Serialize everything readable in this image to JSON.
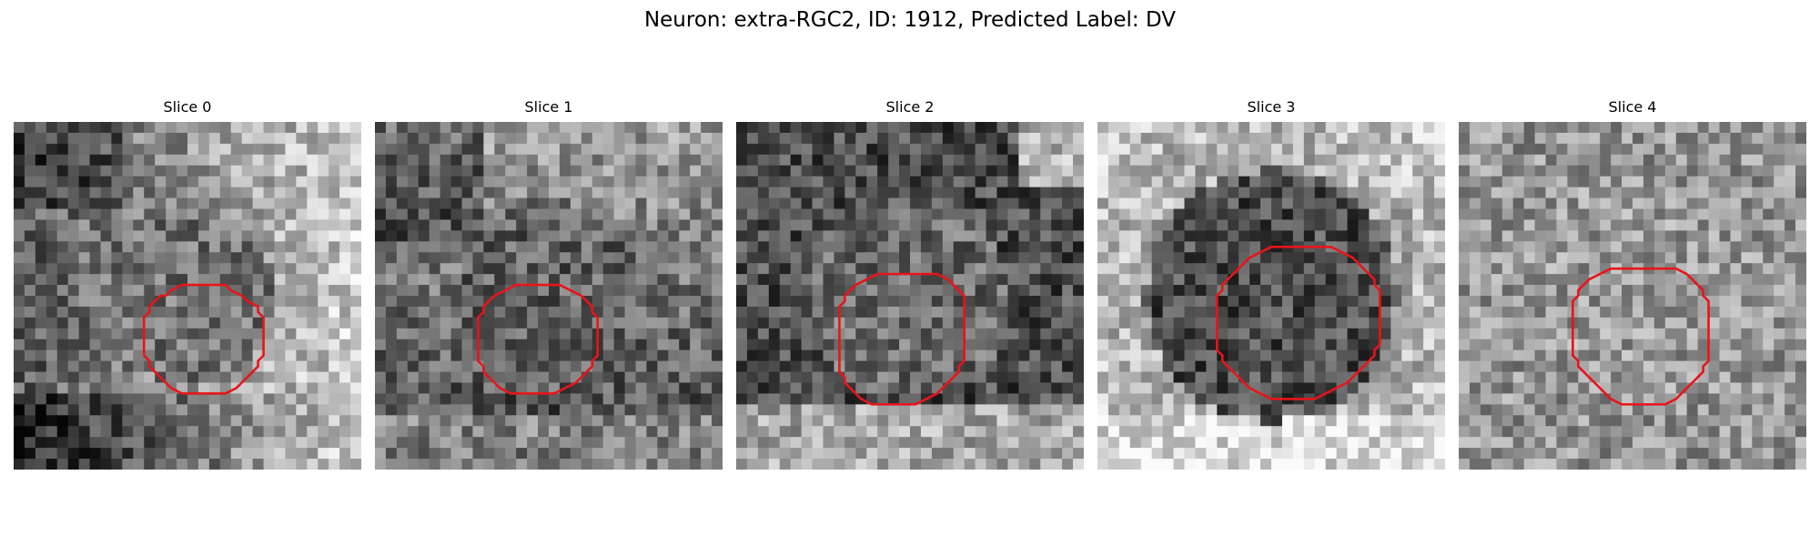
{
  "figure": {
    "title": "Neuron: extra-RGC2, ID: 1912, Predicted Label: DV"
  },
  "outline_color": "#e8141a",
  "panels": [
    {
      "title": "Slice 0",
      "background_tone": "dark-left-bright-right",
      "outline": [
        [
          40,
          31
        ],
        [
          42,
          32
        ],
        [
          43,
          33
        ],
        [
          45,
          34
        ],
        [
          45,
          35
        ],
        [
          46,
          36
        ],
        [
          46,
          37
        ],
        [
          46,
          38
        ],
        [
          46,
          39
        ],
        [
          46,
          40
        ],
        [
          46,
          41
        ],
        [
          46,
          42
        ],
        [
          46,
          43
        ],
        [
          45,
          44
        ],
        [
          45,
          45
        ],
        [
          44,
          46
        ],
        [
          43,
          47
        ],
        [
          42,
          48
        ],
        [
          41,
          49
        ],
        [
          39,
          50
        ],
        [
          37,
          50
        ],
        [
          35,
          50
        ],
        [
          33,
          50
        ],
        [
          31,
          50
        ],
        [
          29,
          49
        ],
        [
          28,
          48
        ],
        [
          27,
          47
        ],
        [
          26,
          46
        ],
        [
          25,
          45
        ],
        [
          25,
          44
        ],
        [
          24,
          43
        ],
        [
          24,
          42
        ],
        [
          24,
          41
        ],
        [
          24,
          40
        ],
        [
          24,
          39
        ],
        [
          24,
          38
        ],
        [
          24,
          37
        ],
        [
          24,
          36
        ],
        [
          25,
          35
        ],
        [
          25,
          34
        ],
        [
          26,
          33
        ],
        [
          27,
          32
        ],
        [
          28,
          32
        ],
        [
          29,
          31
        ],
        [
          31,
          30
        ],
        [
          33,
          30
        ],
        [
          35,
          30
        ],
        [
          37,
          30
        ],
        [
          39,
          30
        ],
        [
          40,
          31
        ]
      ]
    },
    {
      "title": "Slice 1",
      "background_tone": "dark-lower-bright-upper",
      "outline": [
        [
          34,
          30
        ],
        [
          36,
          31
        ],
        [
          38,
          32
        ],
        [
          39,
          33
        ],
        [
          40,
          34
        ],
        [
          40,
          35
        ],
        [
          41,
          36
        ],
        [
          41,
          37
        ],
        [
          41,
          38
        ],
        [
          41,
          39
        ],
        [
          41,
          40
        ],
        [
          41,
          41
        ],
        [
          41,
          42
        ],
        [
          41,
          43
        ],
        [
          40,
          44
        ],
        [
          40,
          45
        ],
        [
          39,
          46
        ],
        [
          38,
          47
        ],
        [
          37,
          48
        ],
        [
          35,
          49
        ],
        [
          33,
          50
        ],
        [
          31,
          50
        ],
        [
          29,
          50
        ],
        [
          27,
          50
        ],
        [
          25,
          50
        ],
        [
          23,
          49
        ],
        [
          22,
          48
        ],
        [
          21,
          47
        ],
        [
          20,
          46
        ],
        [
          20,
          45
        ],
        [
          19,
          44
        ],
        [
          19,
          43
        ],
        [
          19,
          42
        ],
        [
          19,
          41
        ],
        [
          19,
          40
        ],
        [
          19,
          39
        ],
        [
          19,
          38
        ],
        [
          19,
          37
        ],
        [
          19,
          36
        ],
        [
          20,
          35
        ],
        [
          20,
          34
        ],
        [
          21,
          33
        ],
        [
          22,
          32
        ],
        [
          24,
          31
        ],
        [
          26,
          30
        ],
        [
          28,
          30
        ],
        [
          30,
          30
        ],
        [
          32,
          30
        ],
        [
          34,
          30
        ]
      ]
    },
    {
      "title": "Slice 2",
      "background_tone": "dark-center-bright-bottom",
      "outline": [
        [
          37,
          28
        ],
        [
          39,
          29
        ],
        [
          40,
          30
        ],
        [
          41,
          31
        ],
        [
          42,
          32
        ],
        [
          42,
          33
        ],
        [
          42,
          34
        ],
        [
          42,
          35
        ],
        [
          42,
          36
        ],
        [
          42,
          37
        ],
        [
          42,
          38
        ],
        [
          42,
          39
        ],
        [
          42,
          40
        ],
        [
          42,
          41
        ],
        [
          42,
          42
        ],
        [
          42,
          43
        ],
        [
          42,
          44
        ],
        [
          41,
          45
        ],
        [
          41,
          46
        ],
        [
          40,
          47
        ],
        [
          39,
          48
        ],
        [
          38,
          49
        ],
        [
          37,
          50
        ],
        [
          35,
          51
        ],
        [
          33,
          52
        ],
        [
          31,
          52
        ],
        [
          29,
          52
        ],
        [
          27,
          52
        ],
        [
          25,
          52
        ],
        [
          23,
          51
        ],
        [
          22,
          50
        ],
        [
          21,
          49
        ],
        [
          20,
          48
        ],
        [
          20,
          47
        ],
        [
          19,
          46
        ],
        [
          19,
          45
        ],
        [
          19,
          44
        ],
        [
          19,
          43
        ],
        [
          19,
          42
        ],
        [
          19,
          41
        ],
        [
          19,
          40
        ],
        [
          19,
          39
        ],
        [
          19,
          38
        ],
        [
          19,
          37
        ],
        [
          19,
          36
        ],
        [
          19,
          35
        ],
        [
          19,
          34
        ],
        [
          20,
          33
        ],
        [
          20,
          32
        ],
        [
          21,
          31
        ],
        [
          22,
          30
        ],
        [
          24,
          29
        ],
        [
          26,
          28
        ],
        [
          28,
          28
        ],
        [
          30,
          28
        ],
        [
          32,
          28
        ],
        [
          34,
          28
        ],
        [
          36,
          28
        ],
        [
          37,
          28
        ]
      ]
    },
    {
      "title": "Slice 3",
      "background_tone": "dark-center-bright-edges",
      "outline": [
        [
          43,
          23
        ],
        [
          45,
          24
        ],
        [
          47,
          25
        ],
        [
          48,
          26
        ],
        [
          49,
          27
        ],
        [
          50,
          28
        ],
        [
          51,
          29
        ],
        [
          51,
          30
        ],
        [
          52,
          31
        ],
        [
          52,
          32
        ],
        [
          52,
          33
        ],
        [
          52,
          34
        ],
        [
          52,
          35
        ],
        [
          52,
          36
        ],
        [
          52,
          37
        ],
        [
          52,
          38
        ],
        [
          52,
          39
        ],
        [
          52,
          40
        ],
        [
          52,
          41
        ],
        [
          51,
          42
        ],
        [
          51,
          43
        ],
        [
          50,
          44
        ],
        [
          49,
          45
        ],
        [
          48,
          46
        ],
        [
          47,
          47
        ],
        [
          46,
          48
        ],
        [
          44,
          49
        ],
        [
          42,
          50
        ],
        [
          40,
          51
        ],
        [
          38,
          51
        ],
        [
          36,
          51
        ],
        [
          34,
          51
        ],
        [
          32,
          51
        ],
        [
          30,
          50
        ],
        [
          28,
          49
        ],
        [
          27,
          48
        ],
        [
          26,
          47
        ],
        [
          25,
          46
        ],
        [
          24,
          45
        ],
        [
          23,
          44
        ],
        [
          23,
          43
        ],
        [
          22,
          42
        ],
        [
          22,
          41
        ],
        [
          22,
          40
        ],
        [
          22,
          39
        ],
        [
          22,
          38
        ],
        [
          22,
          37
        ],
        [
          22,
          36
        ],
        [
          22,
          35
        ],
        [
          22,
          34
        ],
        [
          22,
          33
        ],
        [
          22,
          32
        ],
        [
          23,
          31
        ],
        [
          23,
          30
        ],
        [
          24,
          29
        ],
        [
          25,
          28
        ],
        [
          26,
          27
        ],
        [
          27,
          26
        ],
        [
          28,
          25
        ],
        [
          30,
          24
        ],
        [
          32,
          23
        ],
        [
          34,
          23
        ],
        [
          36,
          23
        ],
        [
          38,
          23
        ],
        [
          40,
          23
        ],
        [
          42,
          23
        ],
        [
          43,
          23
        ]
      ]
    },
    {
      "title": "Slice 4",
      "background_tone": "mottled-mid-gray",
      "outline": [
        [
          40,
          27
        ],
        [
          42,
          28
        ],
        [
          43,
          29
        ],
        [
          44,
          30
        ],
        [
          45,
          31
        ],
        [
          45,
          32
        ],
        [
          46,
          33
        ],
        [
          46,
          34
        ],
        [
          46,
          35
        ],
        [
          46,
          36
        ],
        [
          46,
          37
        ],
        [
          46,
          38
        ],
        [
          46,
          39
        ],
        [
          46,
          40
        ],
        [
          46,
          41
        ],
        [
          46,
          42
        ],
        [
          46,
          43
        ],
        [
          46,
          44
        ],
        [
          45,
          45
        ],
        [
          45,
          46
        ],
        [
          44,
          47
        ],
        [
          43,
          48
        ],
        [
          42,
          49
        ],
        [
          41,
          50
        ],
        [
          40,
          51
        ],
        [
          38,
          52
        ],
        [
          36,
          52
        ],
        [
          34,
          52
        ],
        [
          32,
          52
        ],
        [
          30,
          52
        ],
        [
          28,
          51
        ],
        [
          27,
          50
        ],
        [
          26,
          49
        ],
        [
          25,
          48
        ],
        [
          24,
          47
        ],
        [
          23,
          46
        ],
        [
          22,
          45
        ],
        [
          22,
          44
        ],
        [
          21,
          43
        ],
        [
          21,
          42
        ],
        [
          21,
          41
        ],
        [
          21,
          40
        ],
        [
          21,
          39
        ],
        [
          21,
          38
        ],
        [
          21,
          37
        ],
        [
          21,
          36
        ],
        [
          21,
          35
        ],
        [
          21,
          34
        ],
        [
          21,
          33
        ],
        [
          22,
          32
        ],
        [
          22,
          31
        ],
        [
          23,
          30
        ],
        [
          24,
          29
        ],
        [
          26,
          28
        ],
        [
          28,
          27
        ],
        [
          30,
          27
        ],
        [
          32,
          27
        ],
        [
          34,
          27
        ],
        [
          36,
          27
        ],
        [
          38,
          27
        ],
        [
          40,
          27
        ]
      ]
    }
  ]
}
